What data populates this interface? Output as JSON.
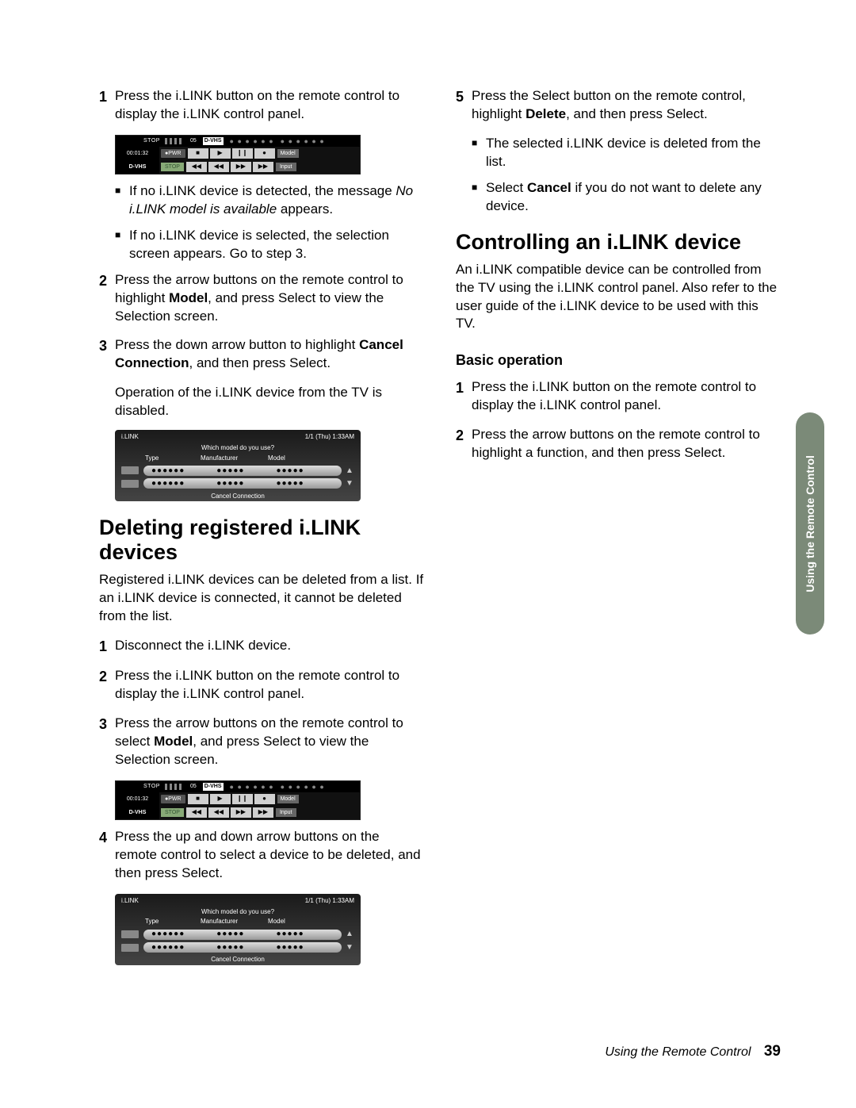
{
  "left": {
    "step1": {
      "n": "1",
      "t": "Press the i.LINK button on the remote control to display the i.LINK control panel."
    },
    "panel1": {
      "stop": "STOP",
      "ch": "05",
      "dvhs": "D-VHS",
      "dots1": "● ● ● ● ● ●",
      "dots2": "● ● ● ● ● ●",
      "time": "00:01:32",
      "pwr": "●PWR",
      "b_stop": "■",
      "b_play": "▶",
      "b_pause": "❙❙",
      "b_rec": "●",
      "model": "Model",
      "dvhs2": "D-VHS",
      "stop2": "STOP",
      "b_prev": "◀◀",
      "b_rew": "◀◀",
      "b_ff": "▶▶",
      "b_next": "▶▶",
      "input": "Input"
    },
    "b1": "If no i.LINK device is detected, the message ",
    "b1i": "No i.LINK model is available",
    "b1s": " appears.",
    "b2": "If no i.LINK device is selected, the selection screen appears. Go to step 3.",
    "step2": {
      "n": "2",
      "t1": "Press the arrow buttons on the remote control to highlight ",
      "tb": "Model",
      "t2": ", and press Select to view the Selection screen."
    },
    "step3": {
      "n": "3",
      "t1": "Press the down arrow button to highlight ",
      "tb": "Cancel Connection",
      "t2": ", and then press Select."
    },
    "step3sub": "Operation of the i.LINK device from the TV is disabled.",
    "panel2": {
      "title": "i.LINK",
      "date": "1/1 (Thu) 1:33AM",
      "q": "Which model do you use?",
      "h_type": "Type",
      "h_mfr": "Manufacturer",
      "h_model": "Model",
      "row": "●●●●●●",
      "row2": "●●●●●",
      "row3": "●●●●●",
      "cancel": "Cancel Connection"
    },
    "h2": "Deleting registered i.LINK devices",
    "intro": "Registered i.LINK devices can be deleted from a list. If an i.LINK device is connected, it cannot be deleted from the list.",
    "d1": {
      "n": "1",
      "t": "Disconnect the i.LINK device."
    },
    "d2": {
      "n": "2",
      "t": "Press the i.LINK button on the remote control to display the i.LINK control panel."
    },
    "d3": {
      "n": "3",
      "t1": "Press the arrow buttons on the remote control to select ",
      "tb": "Model",
      "t2": ", and press Select to view the Selection screen."
    },
    "d4": {
      "n": "4",
      "t": "Press the up and down arrow buttons on the remote control to select a device to be deleted, and then press Select."
    }
  },
  "right": {
    "step5": {
      "n": "5",
      "t1": "Press the Select button on the remote control, highlight ",
      "tb": "Delete",
      "t2": ", and then press Select."
    },
    "rb1": "The selected i.LINK device is deleted from the list.",
    "rb2a": "Select ",
    "rb2b": "Cancel",
    "rb2c": " if you do not want to delete any device.",
    "h2": "Controlling an i.LINK device",
    "intro": "An i.LINK compatible device can be controlled from the TV using the i.LINK control panel. Also refer to the user guide of the i.LINK device to be used with this TV.",
    "h3": "Basic operation",
    "c1": {
      "n": "1",
      "t": "Press the i.LINK button on the remote control to display the i.LINK control panel."
    },
    "c2": {
      "n": "2",
      "t": "Press the arrow buttons on the remote control to highlight a function, and then press Select."
    }
  },
  "sidetab": "Using the Remote Control",
  "footer": {
    "label": "Using the Remote Control",
    "page": "39"
  }
}
